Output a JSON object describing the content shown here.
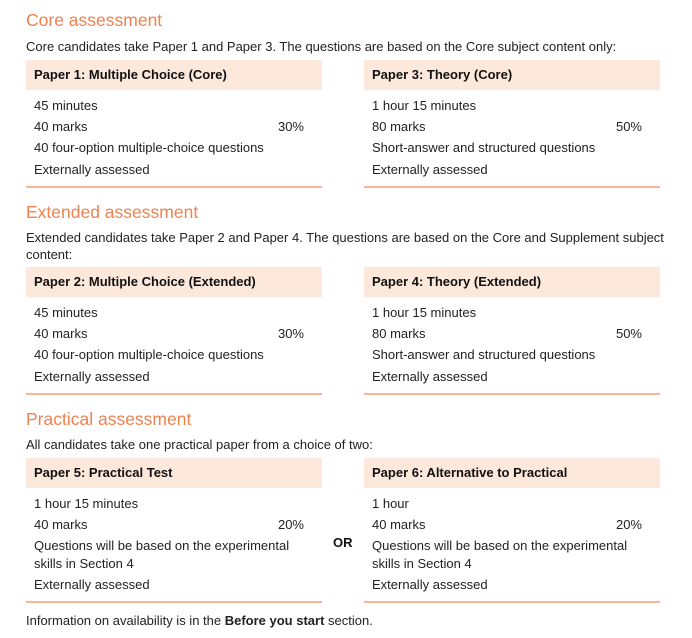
{
  "core": {
    "heading": "Core assessment",
    "intro": "Core candidates take Paper 1 and Paper 3. The questions are based on the Core subject content only:",
    "papers": [
      {
        "title": "Paper 1: Multiple Choice (Core)",
        "duration": "45 minutes",
        "marks": "40 marks",
        "weight": "30%",
        "description": "40 four-option multiple-choice questions",
        "assessment": "Externally assessed"
      },
      {
        "title": "Paper 3: Theory (Core)",
        "duration": "1 hour 15 minutes",
        "marks": "80 marks",
        "weight": "50%",
        "description": "Short-answer and structured questions",
        "assessment": "Externally assessed"
      }
    ]
  },
  "extended": {
    "heading": "Extended assessment",
    "intro": "Extended candidates take Paper 2 and Paper 4. The questions are based on the Core and Supplement subject content:",
    "papers": [
      {
        "title": "Paper 2: Multiple Choice (Extended)",
        "duration": "45 minutes",
        "marks": "40 marks",
        "weight": "30%",
        "description": "40 four-option multiple-choice questions",
        "assessment": "Externally assessed"
      },
      {
        "title": "Paper 4: Theory (Extended)",
        "duration": "1 hour 15 minutes",
        "marks": "80 marks",
        "weight": "50%",
        "description": "Short-answer and structured questions",
        "assessment": "Externally assessed"
      }
    ]
  },
  "practical": {
    "heading": "Practical assessment",
    "intro": "All candidates take one practical paper from a choice of two:",
    "or_label": "OR",
    "papers": [
      {
        "title": "Paper 5: Practical Test",
        "duration": "1 hour 15 minutes",
        "marks": "40 marks",
        "weight": "20%",
        "description": "Questions will be based on the experimental skills in Section 4",
        "assessment": "Externally assessed"
      },
      {
        "title": "Paper 6: Alternative to Practical",
        "duration": "1 hour",
        "marks": "40 marks",
        "weight": "20%",
        "description": "Questions will be based on the experimental skills in Section 4",
        "assessment": "Externally assessed"
      }
    ]
  },
  "footer": {
    "before": "Information on availability is in the ",
    "bold": "Before you start",
    "after": " section."
  },
  "colors": {
    "heading": "#ee8250",
    "header_bg": "#fde8dc",
    "rule": "#f7b797"
  }
}
